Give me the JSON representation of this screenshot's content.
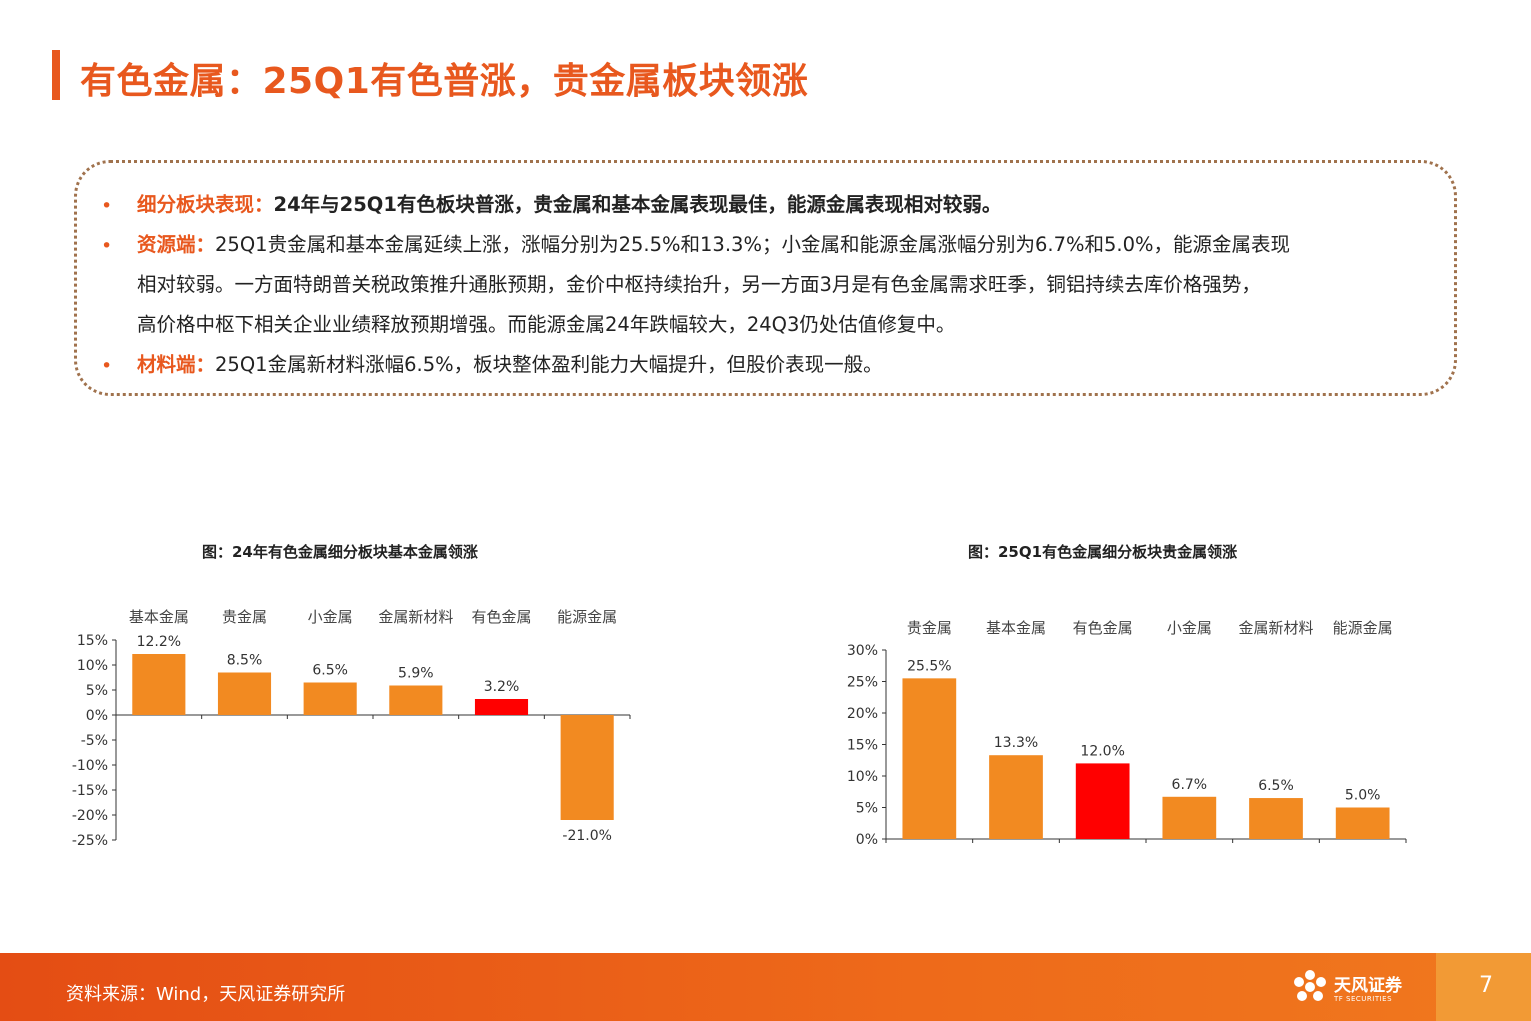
{
  "header": {
    "title": "有色金属：25Q1有色普涨，贵金属板块领涨"
  },
  "summary": {
    "items": [
      {
        "label": "细分板块表现：",
        "lines": [
          "24年与25Q1有色板块普涨，贵金属和基本金属表现最佳，能源金属表现相对较弱。"
        ]
      },
      {
        "label": "资源端：",
        "lines": [
          "25Q1贵金属和基本金属延续上涨，涨幅分别为25.5%和13.3%；小金属和能源金属涨幅分别为6.7%和5.0%，能源金属表现",
          "相对较弱。一方面特朗普关税政策推升通胀预期，金价中枢持续抬升，另一方面3月是有色金属需求旺季，铜铝持续去库价格强势，",
          "高价格中枢下相关企业业绩释放预期增强。而能源金属24年跌幅较大，24Q3仍处估值修复中。"
        ]
      },
      {
        "label": "材料端：",
        "lines": [
          "25Q1金属新材料涨幅6.5%，板块整体盈利能力大幅提升，但股价表现一般。"
        ]
      }
    ]
  },
  "chart_data": [
    {
      "type": "bar",
      "title": "图：24年有色金属细分板块基本金属领涨",
      "categories": [
        "基本金属",
        "贵金属",
        "小金属",
        "金属新材料",
        "有色金属",
        "能源金属"
      ],
      "values": [
        12.2,
        8.5,
        6.5,
        5.9,
        3.2,
        -21.0
      ],
      "value_labels": [
        "12.2%",
        "8.5%",
        "6.5%",
        "5.9%",
        "3.2%",
        "-21.0%"
      ],
      "bar_colors": [
        "#F28A21",
        "#F28A21",
        "#F28A21",
        "#F28A21",
        "#FF0000",
        "#F28A21"
      ],
      "ylim": [
        -25,
        15
      ],
      "yticks": [
        15,
        10,
        5,
        0,
        -5,
        -10,
        -15,
        -20,
        -25
      ],
      "ytick_labels": [
        "15%",
        "10%",
        "5%",
        "0%",
        "-5%",
        "-10%",
        "-15%",
        "-20%",
        "-25%"
      ],
      "legend": "none",
      "grid": false
    },
    {
      "type": "bar",
      "title": "图：25Q1有色金属细分板块贵金属领涨",
      "categories": [
        "贵金属",
        "基本金属",
        "有色金属",
        "小金属",
        "金属新材料",
        "能源金属"
      ],
      "values": [
        25.5,
        13.3,
        12.0,
        6.7,
        6.5,
        5.0
      ],
      "value_labels": [
        "25.5%",
        "13.3%",
        "12.0%",
        "6.7%",
        "6.5%",
        "5.0%"
      ],
      "bar_colors": [
        "#F28A21",
        "#F28A21",
        "#FF0000",
        "#F28A21",
        "#F28A21",
        "#F28A21"
      ],
      "ylim": [
        0,
        30
      ],
      "yticks": [
        30,
        25,
        20,
        15,
        10,
        5,
        0
      ],
      "ytick_labels": [
        "30%",
        "25%",
        "20%",
        "15%",
        "10%",
        "5%",
        "0%"
      ],
      "legend": "none",
      "grid": false
    }
  ],
  "footer": {
    "source": "资料来源：Wind，天风证券研究所",
    "logo_name": "天风证券",
    "logo_sub": "TF SECURITIES",
    "logo_icon": "flower-logo-icon",
    "page_number": "7"
  },
  "colors": {
    "accent": "#E8581E",
    "bar": "#F28A21",
    "highlight_bar": "#FF0000",
    "box_border": "#A0724D"
  }
}
